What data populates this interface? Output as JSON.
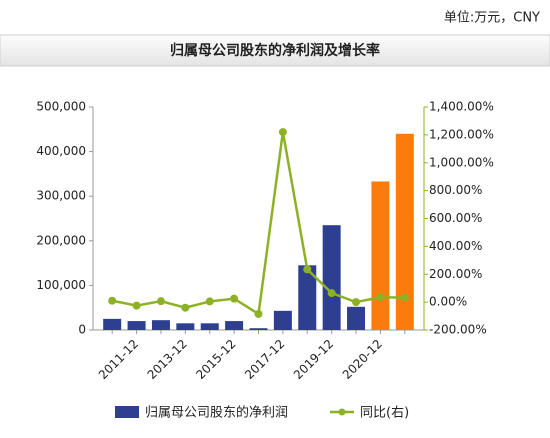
{
  "unit_note": "单位:万元，CNY",
  "chart_data": {
    "type": "bar",
    "title": "归属母公司股东的净利润及增长率",
    "categories": [
      null,
      "2011-12",
      null,
      "2013-12",
      null,
      "2015-12",
      null,
      "2017-12",
      null,
      "2019-12",
      null,
      "2020-12",
      null
    ],
    "series": [
      {
        "name": "归属母公司股东的净利润",
        "type": "bar",
        "color": "#2e3f91",
        "point_colors": [
          "#2e3f91",
          "#2e3f91",
          "#2e3f91",
          "#2e3f91",
          "#2e3f91",
          "#2e3f91",
          "#2e3f91",
          "#2e3f91",
          "#2e3f91",
          "#2e3f91",
          "#2e3f91",
          "#fb7c0c",
          "#fb7c0c"
        ],
        "values": [
          25000,
          20000,
          22000,
          15000,
          15000,
          20000,
          4000,
          43000,
          145000,
          235000,
          52000,
          333000,
          440000
        ]
      },
      {
        "name": "同比(右)",
        "type": "line",
        "axis": "y2",
        "color": "#8db125",
        "values": [
          10,
          -25,
          7,
          -40,
          5,
          25,
          -85,
          1220,
          235,
          65,
          0,
          35,
          32
        ]
      }
    ],
    "ylim": [
      0,
      500000
    ],
    "yticks": [
      0,
      {
        "value": 100000,
        "label": "100,000"
      },
      {
        "value": 200000,
        "label": "200,000"
      },
      {
        "value": 300000,
        "label": "300,000"
      },
      {
        "value": 400000,
        "label": "400,000"
      },
      {
        "value": 500000,
        "label": "500,000"
      }
    ],
    "y2lim": [
      -200,
      1400
    ],
    "y2ticks": [
      {
        "value": -200,
        "label": "-200.00%"
      },
      {
        "value": 0,
        "label": "0.00%"
      },
      {
        "value": 200,
        "label": "200.00%"
      },
      {
        "value": 400,
        "label": "400.00%"
      },
      {
        "value": 600,
        "label": "600.00%"
      },
      {
        "value": 800,
        "label": "800.00%"
      },
      {
        "value": 1000,
        "label": "1,000.00%"
      },
      {
        "value": 1200,
        "label": "1,200.00%"
      },
      {
        "value": 1400,
        "label": "1,400.00%"
      }
    ]
  }
}
